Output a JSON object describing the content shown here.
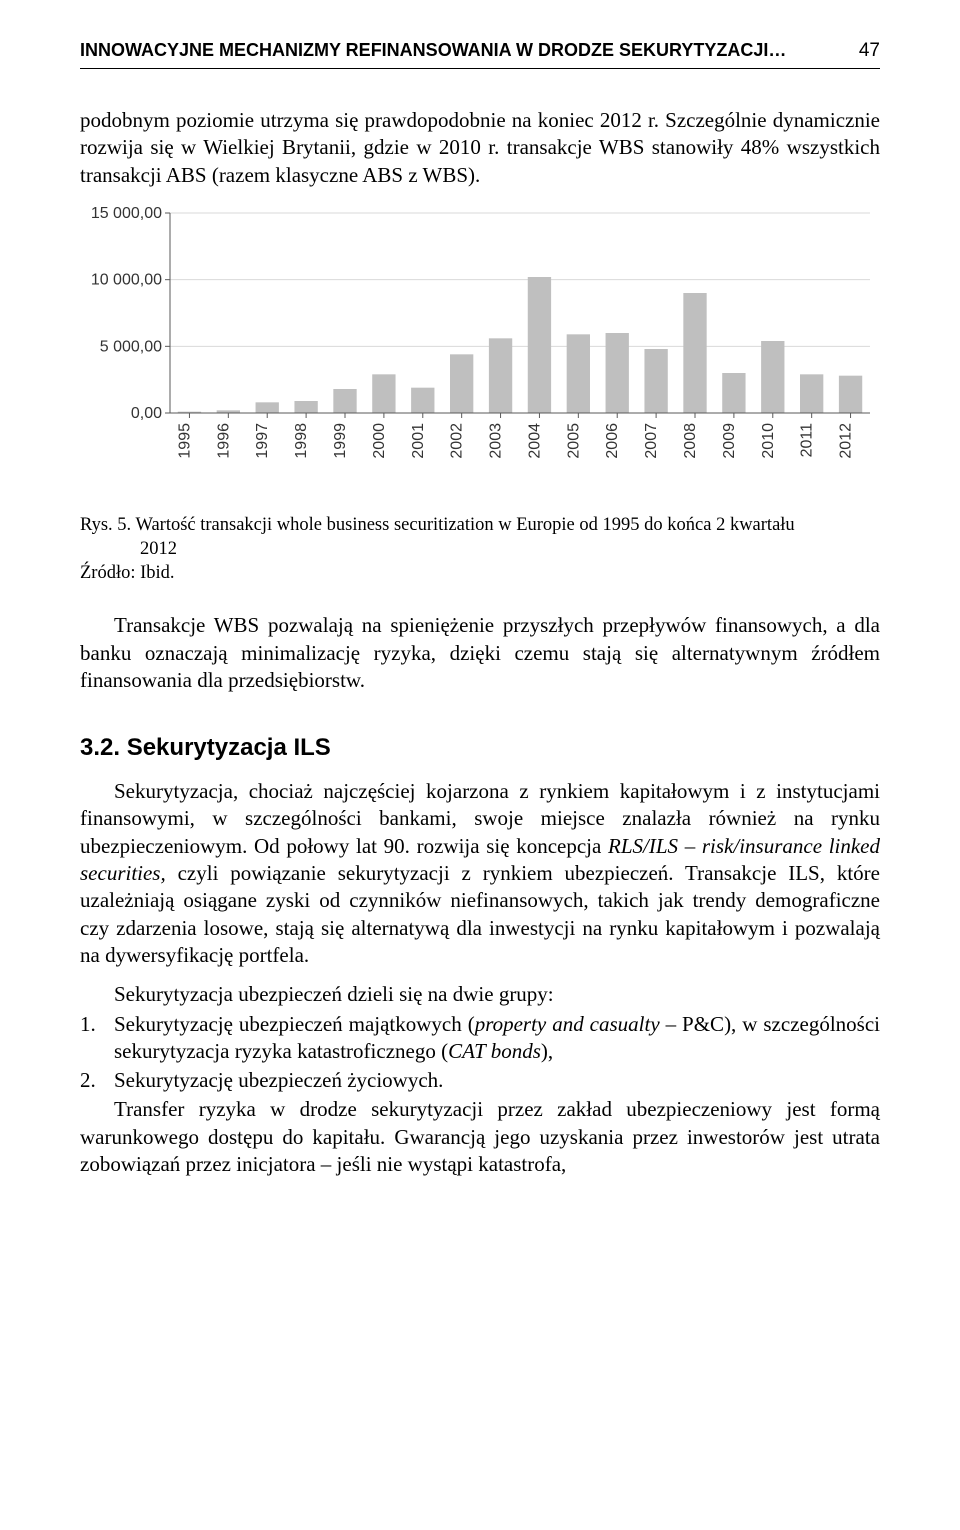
{
  "header": {
    "running_title": "INNOWACYJNE MECHANIZMY REFINANSOWANIA W DRODZE SEKURYTYZACJI…",
    "page_number": "47"
  },
  "para1": "podobnym poziomie utrzyma się prawdopodobnie na koniec 2012 r. Szczególnie dynamicznie rozwija się w Wielkiej Brytanii, gdzie w 2010 r. transakcje WBS stanowiły 48% wszystkich transakcji ABS (razem klasyczne ABS z WBS).",
  "chart": {
    "type": "bar",
    "categories": [
      "1995",
      "1996",
      "1997",
      "1998",
      "1999",
      "2000",
      "2001",
      "2002",
      "2003",
      "2004",
      "2005",
      "2006",
      "2007",
      "2008",
      "2009",
      "2010",
      "2011",
      "2012"
    ],
    "values": [
      100,
      200,
      800,
      900,
      1800,
      2900,
      1900,
      4400,
      5600,
      10200,
      5900,
      6000,
      4800,
      9000,
      3000,
      5400,
      2900,
      2800
    ],
    "ylim": [
      0,
      15000
    ],
    "ytick_step": 5000,
    "ytick_labels": [
      "0,00",
      "5 000,00",
      "10 000,00",
      "15 000,00"
    ],
    "bar_color": "#bfbfbf",
    "axis_color": "#595959",
    "grid_color": "#d9d9d9",
    "label_color": "#333333",
    "background_color": "#ffffff",
    "label_fontsize": 16,
    "bar_width": 0.6
  },
  "caption_lead": "Rys. 5. ",
  "caption_text1": "Wartość transakcji whole business securitization w Europie od 1995 do końca 2 kwartału",
  "caption_text2": "2012",
  "source_label": "Źródło: Ibid.",
  "para2": "Transakcje WBS pozwalają na spieniężenie przyszłych przepływów finansowych, a dla banku oznaczają minimalizację ryzyka, dzięki czemu stają się alternatywnym źródłem finansowania dla przedsiębiorstw.",
  "section_heading": "3.2. Sekurytyzacja ILS",
  "para3a": "Sekurytyzacja, chociaż najczęściej kojarzona z rynkiem kapitałowym i z instytucjami finansowymi, w szczególności bankami, swoje miejsce znalazła również na rynku ubezpieczeniowym. Od połowy lat 90. rozwija się koncepcja ",
  "para3_em": "RLS/ILS – risk/insurance linked securities,",
  "para3b": " czyli powiązanie sekurytyzacji z rynkiem ubezpieczeń. Transakcje ILS, które uzależniają osiągane zyski od czynników niefinansowych, takich jak trendy demograficzne czy zdarzenia losowe, stają się alternatywą dla inwestycji na rynku kapitałowym i pozwalają na dywersyfikację portfela.",
  "para4": "Sekurytyzacja ubezpieczeń dzieli się na dwie grupy:",
  "list": [
    {
      "n": "1.",
      "t_a": "Sekurytyzację ubezpieczeń majątkowych (",
      "t_em1": "property and casualty",
      "t_b": " – P&C), w szczególności sekurytyzacja ryzyka katastroficznego (",
      "t_em2": "CAT bonds",
      "t_c": "),"
    },
    {
      "n": "2.",
      "t_a": "Sekurytyzację ubezpieczeń życiowych.",
      "t_em1": "",
      "t_b": "",
      "t_em2": "",
      "t_c": ""
    }
  ],
  "para5": "Transfer ryzyka w drodze sekurytyzacji przez zakład ubezpieczeniowy jest formą warunkowego dostępu do kapitału. Gwarancją jego uzyskania przez inwestorów jest utrata zobowiązań przez inicjatora – jeśli nie wystąpi katastrofa,"
}
